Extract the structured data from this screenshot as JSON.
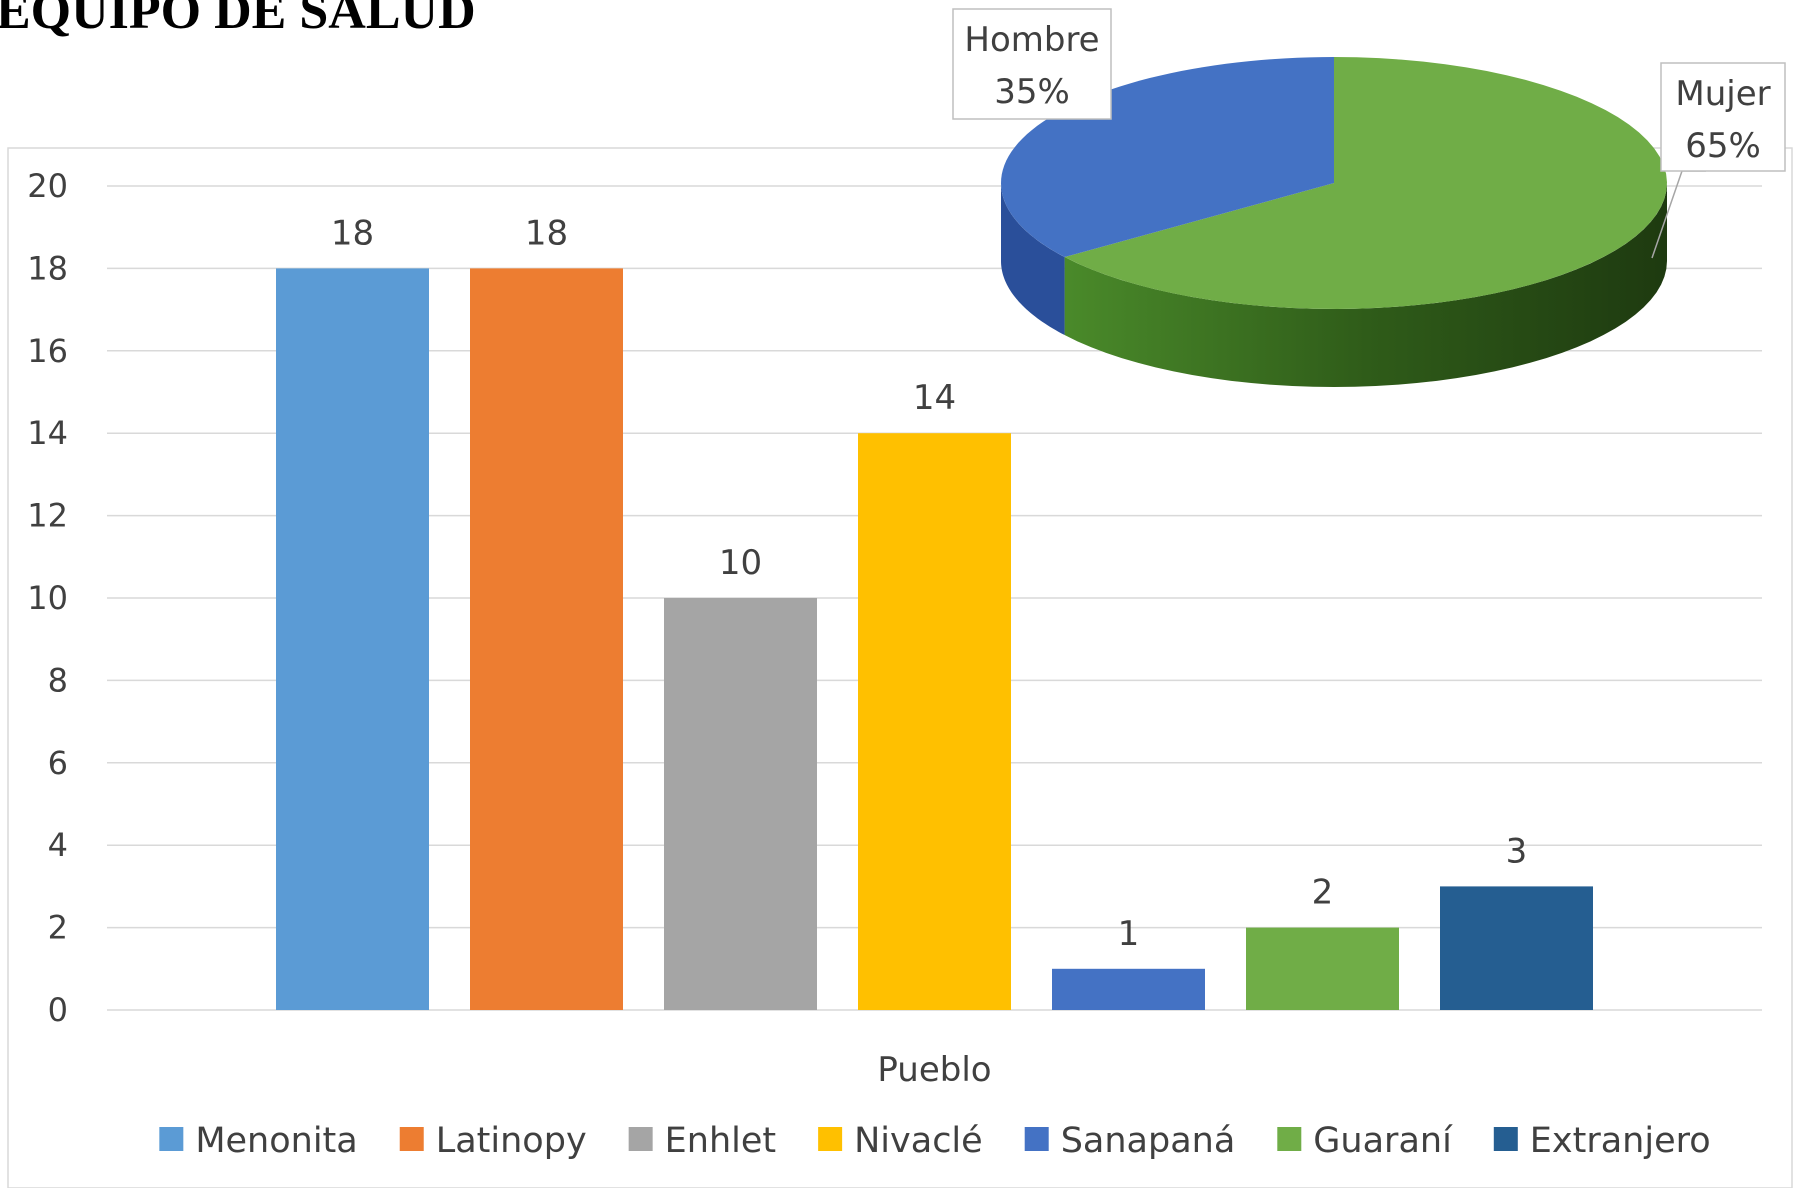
{
  "title": "EQUIPO DE SALUD",
  "chart_data": [
    {
      "type": "bar",
      "x_label": "Pueblo",
      "categories": [
        "Pueblo"
      ],
      "series": [
        {
          "name": "Menonita",
          "color": "#5b9bd5",
          "values": [
            18
          ]
        },
        {
          "name": "Latinopy",
          "color": "#ed7d31",
          "values": [
            18
          ]
        },
        {
          "name": "Enhlet",
          "color": "#a5a5a5",
          "values": [
            10
          ]
        },
        {
          "name": "Nivaclé",
          "color": "#ffc000",
          "values": [
            14
          ]
        },
        {
          "name": "Sanapaná",
          "color": "#4472c4",
          "values": [
            1
          ]
        },
        {
          "name": "Guaraní",
          "color": "#70ad47",
          "values": [
            2
          ]
        },
        {
          "name": "Extranjero",
          "color": "#255e91",
          "values": [
            3
          ]
        }
      ],
      "ylim": [
        0,
        20
      ],
      "yticks": [
        0,
        2,
        4,
        6,
        8,
        10,
        12,
        14,
        16,
        18,
        20
      ],
      "grid": true,
      "legend": "bottom"
    },
    {
      "type": "pie",
      "categories": [
        "Hombre",
        "Mujer"
      ],
      "values": [
        35,
        65
      ],
      "value_labels": [
        "35%",
        "65%"
      ],
      "colors": [
        "#4472c4",
        "#70ad47"
      ]
    }
  ]
}
